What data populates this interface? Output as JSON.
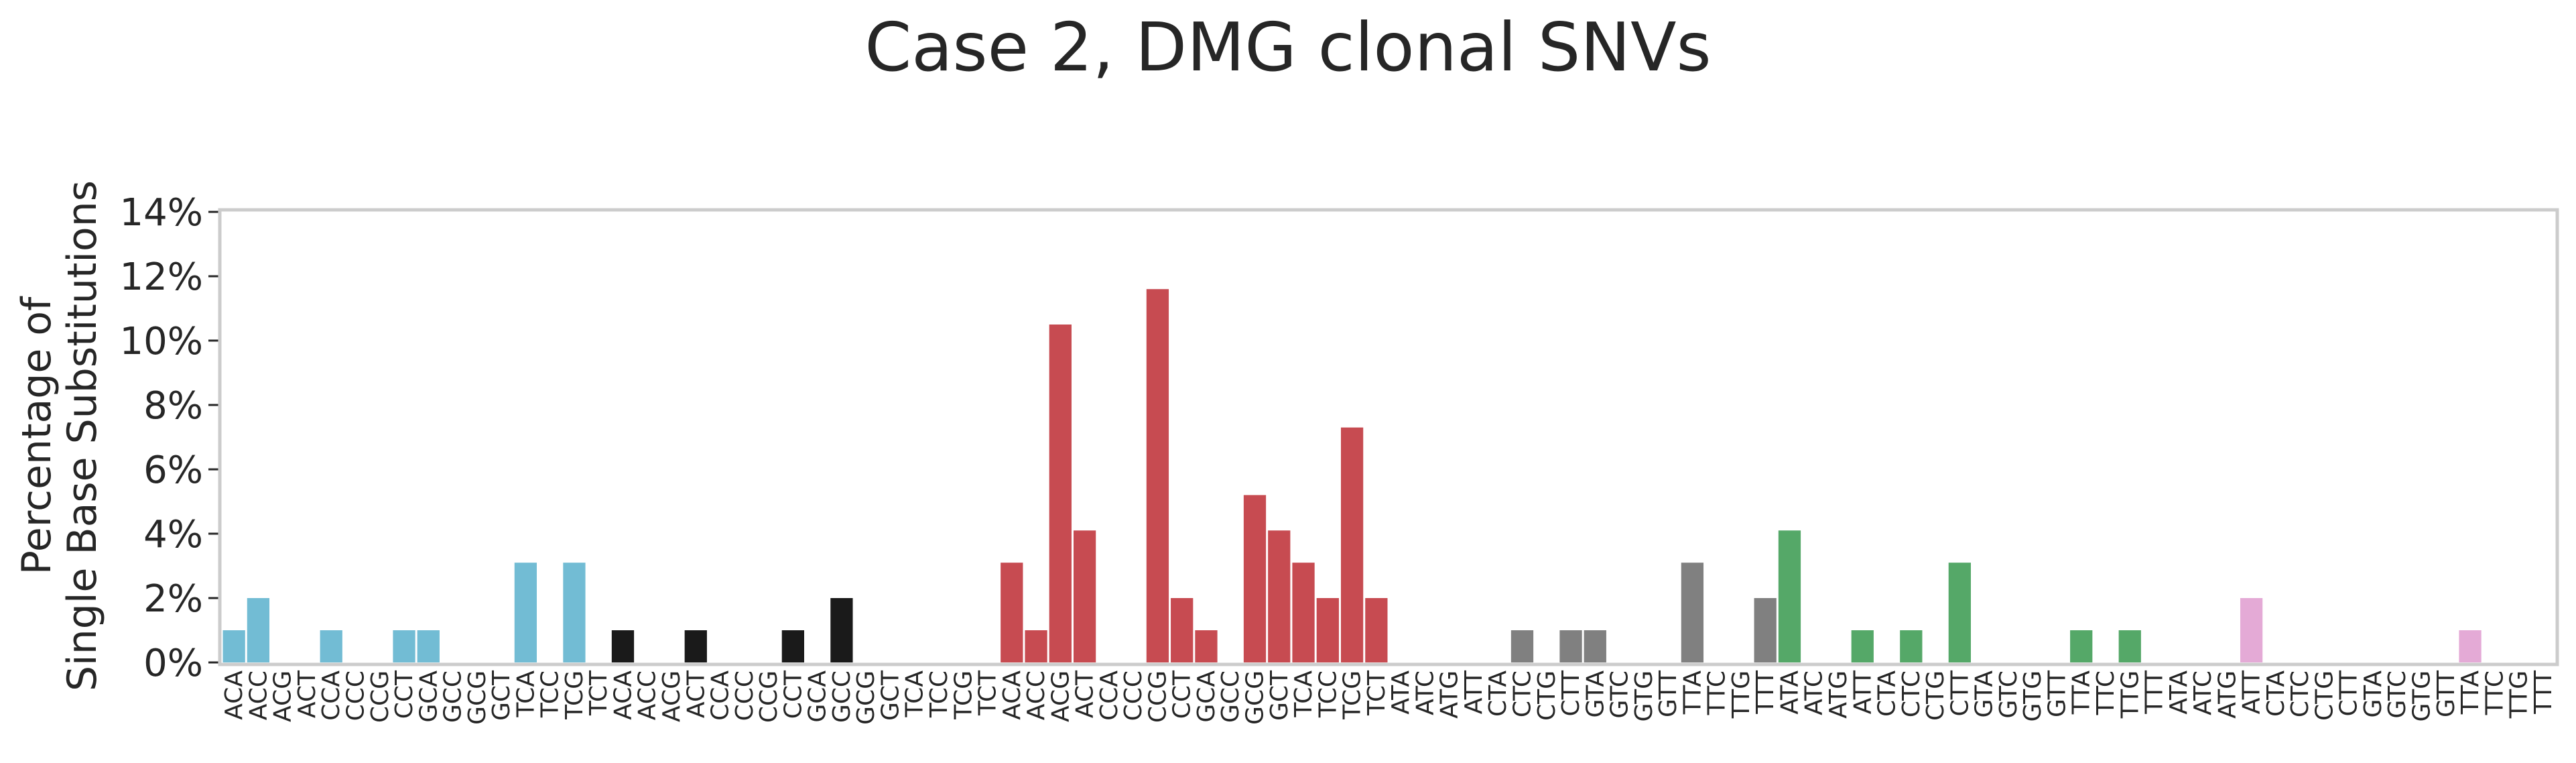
{
  "chart_data": {
    "type": "bar",
    "title": "Case 2, DMG clonal SNVs",
    "ylabel_lines": [
      "Percentage of",
      "Single Base Substitutions"
    ],
    "xlabel": "",
    "ylim": [
      0,
      14
    ],
    "yticks": [
      "0%",
      "2%",
      "4%",
      "6%",
      "8%",
      "10%",
      "12%",
      "14%"
    ],
    "grid": false,
    "legend": "none",
    "categories": [
      "ACA",
      "ACC",
      "ACG",
      "ACT",
      "CCA",
      "CCC",
      "CCG",
      "CCT",
      "GCA",
      "GCC",
      "GCG",
      "GCT",
      "TCA",
      "TCC",
      "TCG",
      "TCT",
      "ACA",
      "ACC",
      "ACG",
      "ACT",
      "CCA",
      "CCC",
      "CCG",
      "CCT",
      "GCA",
      "GCC",
      "GCG",
      "GCT",
      "TCA",
      "TCC",
      "TCG",
      "TCT",
      "ACA",
      "ACC",
      "ACG",
      "ACT",
      "CCA",
      "CCC",
      "CCG",
      "CCT",
      "GCA",
      "GCC",
      "GCG",
      "GCT",
      "TCA",
      "TCC",
      "TCG",
      "TCT",
      "ATA",
      "ATC",
      "ATG",
      "ATT",
      "CTA",
      "CTC",
      "CTG",
      "CTT",
      "GTA",
      "GTC",
      "GTG",
      "GTT",
      "TTA",
      "TTC",
      "TTG",
      "TTT",
      "ATA",
      "ATC",
      "ATG",
      "ATT",
      "CTA",
      "CTC",
      "CTG",
      "CTT",
      "GTA",
      "GTC",
      "GTG",
      "GTT",
      "TTA",
      "TTC",
      "TTG",
      "TTT",
      "ATA",
      "ATC",
      "ATG",
      "ATT",
      "CTA",
      "CTC",
      "CTG",
      "CTT",
      "GTA",
      "GTC",
      "GTG",
      "GTT",
      "TTA",
      "TTC",
      "TTG",
      "TTT"
    ],
    "values": [
      1,
      2,
      0,
      0,
      1,
      0,
      0,
      1,
      1,
      0,
      0,
      0,
      3.1,
      0,
      3.1,
      0,
      1,
      0,
      0,
      1,
      0,
      0,
      0,
      1,
      0,
      2,
      0,
      0,
      0,
      0,
      0,
      0,
      3.1,
      1,
      10.5,
      4.1,
      0,
      0,
      11.6,
      2,
      1,
      0,
      5.2,
      4.1,
      3.1,
      2,
      7.3,
      2,
      0,
      0,
      0,
      0,
      0,
      1,
      0,
      1,
      1,
      0,
      0,
      0,
      3.1,
      0,
      0,
      2,
      4.1,
      0,
      0,
      1,
      0,
      1,
      0,
      3.1,
      0,
      0,
      0,
      0,
      1,
      0,
      1,
      0,
      0,
      0,
      0,
      2,
      0,
      0,
      0,
      0,
      0,
      0,
      0,
      0,
      1,
      0,
      0,
      0
    ],
    "group_colors": [
      "#72bcd4",
      "#1a1a1a",
      "#c74b51",
      "#808080",
      "#55a868",
      "#e4aad6"
    ]
  }
}
